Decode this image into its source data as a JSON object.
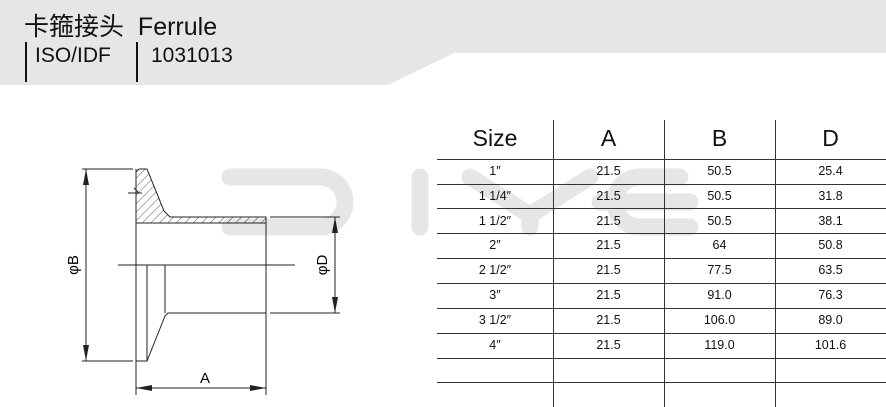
{
  "header": {
    "title_cn": "卡箍接头",
    "title_en": "Ferrule",
    "standard": "ISO/IDF",
    "code": "1031013"
  },
  "watermark": "DIYE",
  "drawing": {
    "dim_b": "φB",
    "dim_d": "φD",
    "dim_a": "A"
  },
  "table": {
    "columns": [
      "Size",
      "A",
      "B",
      "D"
    ],
    "rows": [
      [
        "1″",
        "21.5",
        "50.5",
        "25.4"
      ],
      [
        "1 1/4″",
        "21.5",
        "50.5",
        "31.8"
      ],
      [
        "1 1/2″",
        "21.5",
        "50.5",
        "38.1"
      ],
      [
        "2″",
        "21.5",
        "64",
        "50.8"
      ],
      [
        "2 1/2″",
        "21.5",
        "77.5",
        "63.5"
      ],
      [
        "3″",
        "21.5",
        "91.0",
        "76.3"
      ],
      [
        "3 1/2″",
        "21.5",
        "106.0",
        "89.0"
      ],
      [
        "4″",
        "21.5",
        "119.0",
        "101.6"
      ],
      [
        "",
        "",
        "",
        ""
      ]
    ]
  },
  "colors": {
    "band": "#e6e6e6",
    "watermark": "#e4e4e4",
    "ink": "#111111"
  }
}
